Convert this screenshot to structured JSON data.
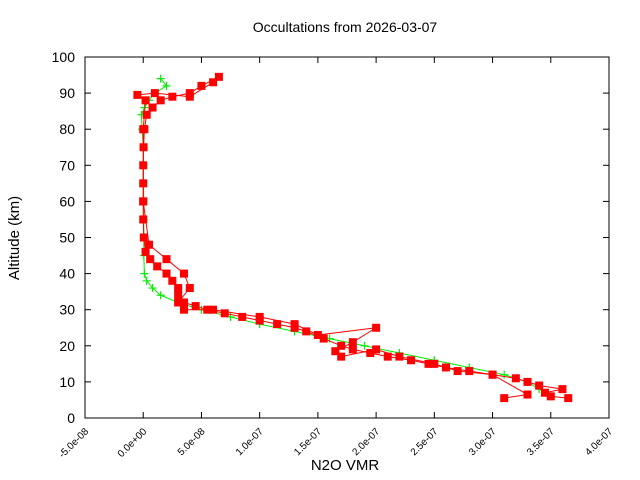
{
  "chart_data": {
    "type": "line",
    "title": "Occultations from 2026-03-07",
    "xlabel": "N2O VMR",
    "ylabel": "Altitude (km)",
    "xlim": [
      -5e-08,
      4e-07
    ],
    "ylim": [
      0,
      100
    ],
    "x_ticks": [
      "-5.0e-08",
      "0.0e+00",
      "5.0e-08",
      "1.0e-07",
      "1.5e-07",
      "2.0e-07",
      "2.5e-07",
      "3.0e-07",
      "3.5e-07",
      "4.0e-07"
    ],
    "x_tick_values": [
      -5e-08,
      0,
      5e-08,
      1e-07,
      1.5e-07,
      2e-07,
      2.5e-07,
      3e-07,
      3.5e-07,
      4e-07
    ],
    "y_ticks": [
      "0",
      "10",
      "20",
      "30",
      "40",
      "50",
      "60",
      "70",
      "80",
      "90",
      "100"
    ],
    "y_tick_values": [
      0,
      10,
      20,
      30,
      40,
      50,
      60,
      70,
      80,
      90,
      100
    ],
    "grid": false,
    "series": [
      {
        "marker": "plus",
        "color": "#00ee00",
        "profiles": [
          [
            [
              3.5e-07,
              6
            ],
            [
              3.4e-07,
              8
            ],
            [
              3.3e-07,
              10
            ],
            [
              3.1e-07,
              12
            ],
            [
              2.8e-07,
              14
            ],
            [
              2.5e-07,
              16
            ],
            [
              2.2e-07,
              18
            ],
            [
              1.9e-07,
              20
            ],
            [
              1.6e-07,
              22
            ],
            [
              1.3e-07,
              24
            ],
            [
              1e-07,
              26
            ],
            [
              7.5e-08,
              28
            ],
            [
              5e-08,
              30
            ],
            [
              3e-08,
              32
            ],
            [
              1.5e-08,
              34
            ],
            [
              8e-09,
              36
            ],
            [
              3e-09,
              38
            ],
            [
              1e-09,
              40
            ],
            [
              5e-10,
              45
            ],
            [
              5e-10,
              50
            ],
            [
              5e-10,
              55
            ],
            [
              4e-10,
              60
            ],
            [
              3e-10,
              65
            ],
            [
              2e-10,
              70
            ],
            [
              1e-10,
              75
            ],
            [
              -1e-09,
              80
            ],
            [
              -1.5e-09,
              84
            ],
            [
              1e-09,
              86
            ],
            [
              5e-09,
              88
            ],
            [
              1e-08,
              90
            ],
            [
              2e-08,
              92
            ],
            [
              1.5e-08,
              94
            ]
          ]
        ]
      },
      {
        "marker": "square",
        "color": "#ff0000",
        "profiles": [
          [
            [
              3.65e-07,
              5.5
            ],
            [
              3.5e-07,
              6
            ],
            [
              3.45e-07,
              7
            ],
            [
              3.6e-07,
              8
            ],
            [
              3.4e-07,
              9
            ],
            [
              3.3e-07,
              10
            ],
            [
              3.2e-07,
              11
            ],
            [
              3e-07,
              12
            ],
            [
              2.8e-07,
              13
            ],
            [
              2.6e-07,
              14
            ],
            [
              2.45e-07,
              15
            ],
            [
              2.3e-07,
              16
            ],
            [
              2.1e-07,
              17
            ],
            [
              1.95e-07,
              18
            ],
            [
              1.8e-07,
              19
            ],
            [
              1.7e-07,
              20
            ],
            [
              1.55e-07,
              22
            ],
            [
              1.4e-07,
              24
            ],
            [
              1.3e-07,
              25
            ],
            [
              1.15e-07,
              26
            ],
            [
              1e-07,
              27
            ],
            [
              8.5e-08,
              28
            ],
            [
              7e-08,
              29
            ],
            [
              5.5e-08,
              30
            ],
            [
              4.5e-08,
              31
            ],
            [
              3.5e-08,
              32
            ],
            [
              3e-08,
              34
            ],
            [
              3e-08,
              36
            ],
            [
              2.5e-08,
              38
            ],
            [
              2e-08,
              40
            ],
            [
              1.2e-08,
              42
            ],
            [
              6e-09,
              44
            ],
            [
              2e-09,
              46
            ],
            [
              5e-10,
              50
            ],
            [
              0,
              55
            ],
            [
              0,
              60
            ],
            [
              0,
              65
            ],
            [
              0,
              70
            ],
            [
              3e-10,
              75
            ],
            [
              1e-09,
              80
            ],
            [
              3e-09,
              84
            ],
            [
              8e-09,
              86
            ],
            [
              1.5e-08,
              88
            ],
            [
              2.5e-08,
              89
            ],
            [
              4e-08,
              90
            ],
            [
              5e-08,
              92
            ],
            [
              6.5e-08,
              94.5
            ]
          ],
          [
            [
              3.1e-07,
              5.5
            ],
            [
              3.3e-07,
              6.5
            ],
            [
              3e-07,
              12
            ],
            [
              2.7e-07,
              13
            ],
            [
              2.5e-07,
              15
            ],
            [
              2.2e-07,
              17
            ],
            [
              2e-07,
              19
            ],
            [
              1.7e-07,
              17
            ],
            [
              1.65e-07,
              18.5
            ],
            [
              1.8e-07,
              21
            ],
            [
              2e-07,
              25
            ],
            [
              1.5e-07,
              23
            ],
            [
              1.3e-07,
              26
            ],
            [
              1e-07,
              28
            ],
            [
              6e-08,
              30
            ],
            [
              3.5e-08,
              30
            ],
            [
              3e-08,
              32
            ],
            [
              4e-08,
              36
            ],
            [
              3.5e-08,
              40
            ],
            [
              2e-08,
              44
            ],
            [
              5e-09,
              48
            ],
            [
              0,
              60
            ],
            [
              0,
              80
            ],
            [
              2e-09,
              88
            ],
            [
              -5e-09,
              89.5
            ],
            [
              1e-08,
              90
            ],
            [
              4e-08,
              89
            ],
            [
              6e-08,
              93
            ]
          ]
        ]
      }
    ]
  }
}
